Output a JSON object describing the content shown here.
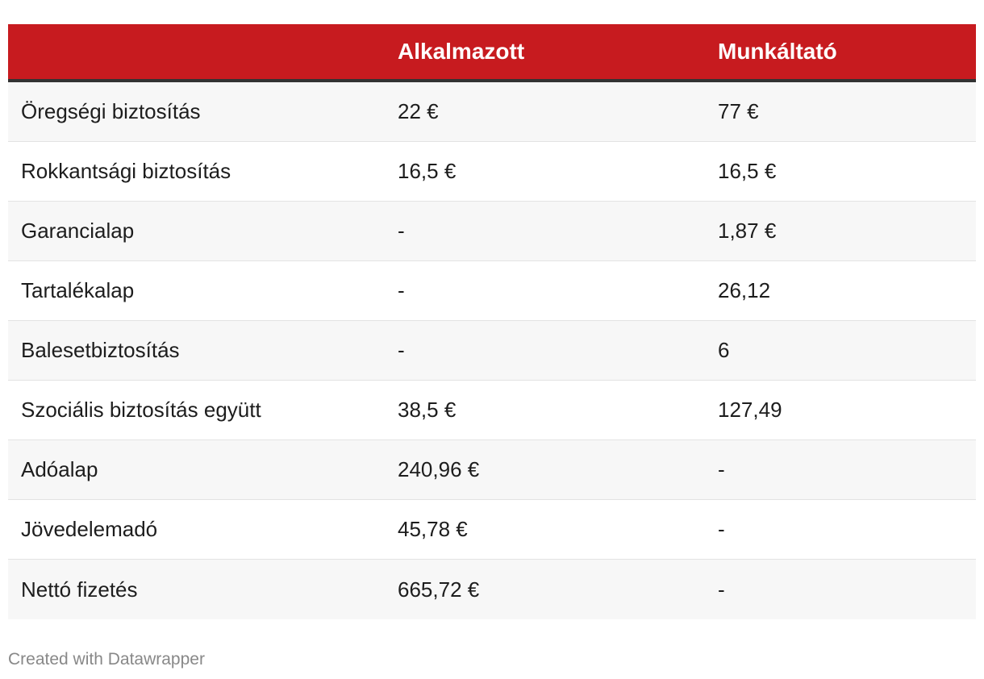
{
  "chart_data": {
    "type": "table",
    "columns": [
      "",
      "Alkalmazott",
      "Munkáltató"
    ],
    "rows": [
      [
        "Öregségi biztosítás",
        "22 €",
        "77 €"
      ],
      [
        "Rokkantsági biztosítás",
        "16,5 €",
        "16,5 €"
      ],
      [
        "Garancialap",
        "-",
        "1,87 €"
      ],
      [
        "Tartalékalap",
        "-",
        "26,12"
      ],
      [
        "Balesetbiztosítás",
        "-",
        "6"
      ],
      [
        "Szociális biztosítás együtt",
        "38,5 €",
        "127,49"
      ],
      [
        "Adóalap",
        "240,96 €",
        "-"
      ],
      [
        "Jövedelemadó",
        "45,78 €",
        "-"
      ],
      [
        "Nettó fizetés",
        "665,72 €",
        "-"
      ]
    ],
    "header_color": "#c71b1f"
  },
  "footer": {
    "credit": "Created with Datawrapper"
  }
}
